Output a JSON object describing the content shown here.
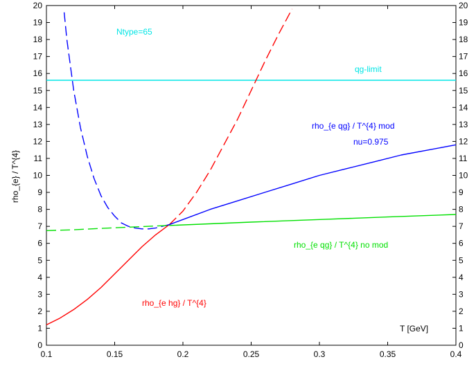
{
  "chart_data": {
    "type": "line",
    "title": "",
    "xlabel": "T [GeV]",
    "ylabel": "rho_{e} / T^{4}",
    "xlim": [
      0.1,
      0.4
    ],
    "ylim": [
      0,
      20
    ],
    "xticks": [
      "0.1",
      "0.15",
      "0.2",
      "0.25",
      "0.3",
      "0.35",
      "0.4"
    ],
    "yticks": [
      "0",
      "1",
      "2",
      "3",
      "4",
      "5",
      "6",
      "7",
      "8",
      "9",
      "10",
      "11",
      "12",
      "13",
      "14",
      "15",
      "16",
      "17",
      "18",
      "19",
      "20"
    ],
    "grid": false,
    "series": [
      {
        "name": "qg-limit",
        "color": "#00e5e5",
        "style": "solid",
        "x": [
          0.1,
          0.4
        ],
        "y": [
          15.6,
          15.6
        ]
      },
      {
        "name": "rho_{e hg} / T^{4}",
        "color": "#ff0000",
        "style": "solid",
        "x": [
          0.1,
          0.11,
          0.12,
          0.13,
          0.14,
          0.15,
          0.16,
          0.17,
          0.18,
          0.19
        ],
        "y": [
          1.2,
          1.6,
          2.1,
          2.7,
          3.4,
          4.2,
          5.0,
          5.8,
          6.5,
          7.1
        ]
      },
      {
        "name": "rho_{e hg} / T^{4} (dashed)",
        "color": "#ff0000",
        "style": "dashed",
        "x": [
          0.19,
          0.2,
          0.21,
          0.22,
          0.23,
          0.24,
          0.25,
          0.26,
          0.27,
          0.28
        ],
        "y": [
          7.1,
          7.9,
          9.0,
          10.3,
          11.8,
          13.3,
          15.0,
          16.7,
          18.3,
          19.8
        ]
      },
      {
        "name": "rho_{e qg} / T^{4} mod",
        "color": "#0000ff",
        "style": "solid",
        "x": [
          0.19,
          0.2,
          0.22,
          0.24,
          0.26,
          0.28,
          0.3,
          0.32,
          0.34,
          0.36,
          0.38,
          0.4
        ],
        "y": [
          7.1,
          7.4,
          8.0,
          8.5,
          9.0,
          9.5,
          10.0,
          10.4,
          10.8,
          11.2,
          11.5,
          11.8
        ]
      },
      {
        "name": "rho_{e qg} / T^{4} mod (dashed)",
        "color": "#0000ff",
        "style": "dashed",
        "x": [
          0.113,
          0.115,
          0.12,
          0.125,
          0.13,
          0.135,
          0.14,
          0.145,
          0.15,
          0.155,
          0.16,
          0.165,
          0.17,
          0.175,
          0.18,
          0.185,
          0.19
        ],
        "y": [
          19.6,
          18.0,
          15.0,
          12.8,
          11.1,
          9.8,
          8.8,
          8.1,
          7.6,
          7.2,
          7.0,
          6.9,
          6.85,
          6.85,
          6.9,
          7.0,
          7.1
        ]
      },
      {
        "name": "rho_{e qg} / T^{4} no mod",
        "color": "#00e000",
        "style": "solid",
        "x": [
          0.19,
          0.25,
          0.3,
          0.35,
          0.4
        ],
        "y": [
          7.05,
          7.25,
          7.4,
          7.55,
          7.7
        ]
      },
      {
        "name": "rho_{e qg} / T^{4} no mod (dashed)",
        "color": "#00e000",
        "style": "dashed",
        "x": [
          0.1,
          0.12,
          0.14,
          0.16,
          0.18,
          0.19
        ],
        "y": [
          6.75,
          6.8,
          6.88,
          6.95,
          7.02,
          7.05
        ]
      }
    ],
    "annotations": {
      "ntype": "Ntype=65",
      "qg_limit": "qg-limit",
      "mod_line1": "rho_{e qg} / T^{4} mod",
      "mod_line2": "nu=0.975",
      "no_mod": "rho_{e qg} / T^{4} no mod",
      "hg": "rho_{e hg} / T^{4}",
      "xlabel": "T [GeV]"
    },
    "annotation_colors": {
      "ntype": "#00e5e5",
      "qg_limit": "#00e5e5",
      "mod": "#0000ff",
      "no_mod": "#00e000",
      "hg": "#ff0000",
      "xlabel": "#000000"
    }
  }
}
